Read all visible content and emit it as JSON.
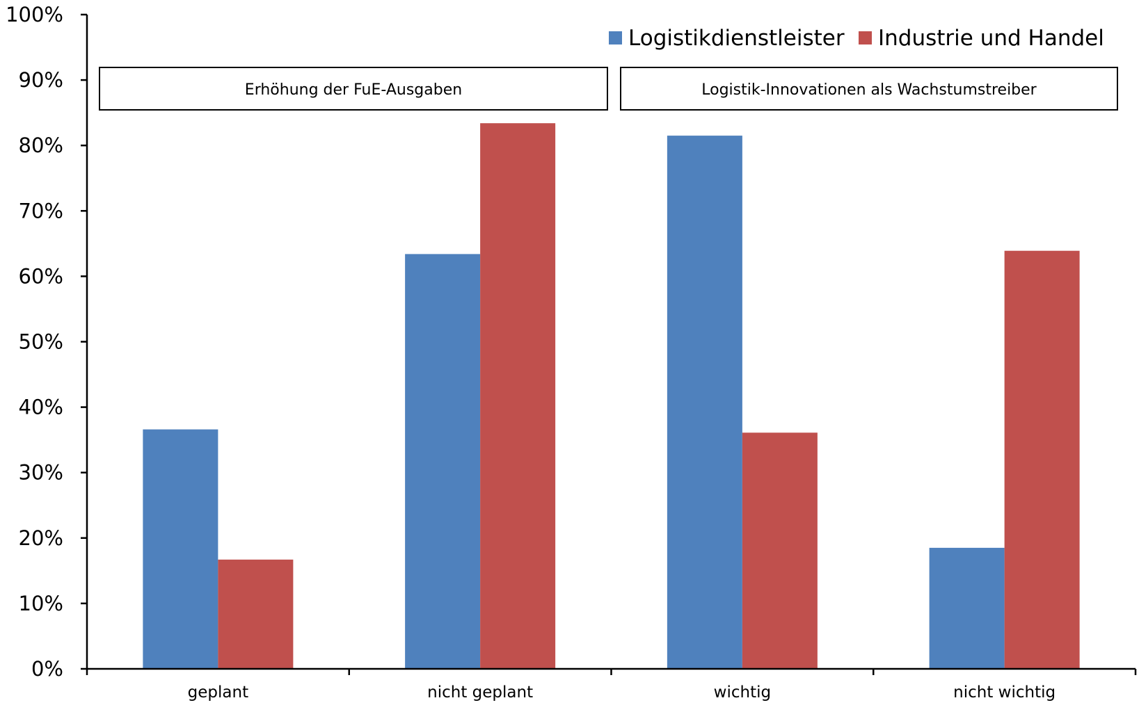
{
  "chart_data": {
    "type": "bar",
    "categories": [
      "geplant",
      "nicht geplant",
      "wichtig",
      "nicht wichtig"
    ],
    "series": [
      {
        "name": "Logistikdienstleister",
        "color": "#4F81BD",
        "values": [
          0.366,
          0.634,
          0.815,
          0.185
        ]
      },
      {
        "name": "Industrie und Handel",
        "color": "#C0504D",
        "values": [
          0.167,
          0.834,
          0.361,
          0.639
        ]
      }
    ],
    "category_groups": [
      {
        "label": "Erhöhung der FuE-Ausgaben",
        "categories": [
          "geplant",
          "nicht geplant"
        ]
      },
      {
        "label": "Logistik-Innovationen als Wachstumstreiber",
        "categories": [
          "wichtig",
          "nicht wichtig"
        ]
      }
    ],
    "yticks": [
      "0%",
      "10%",
      "20%",
      "30%",
      "40%",
      "50%",
      "60%",
      "70%",
      "80%",
      "90%",
      "100%"
    ],
    "ylim": [
      0,
      1
    ],
    "grid": false,
    "legend": "top-right"
  }
}
